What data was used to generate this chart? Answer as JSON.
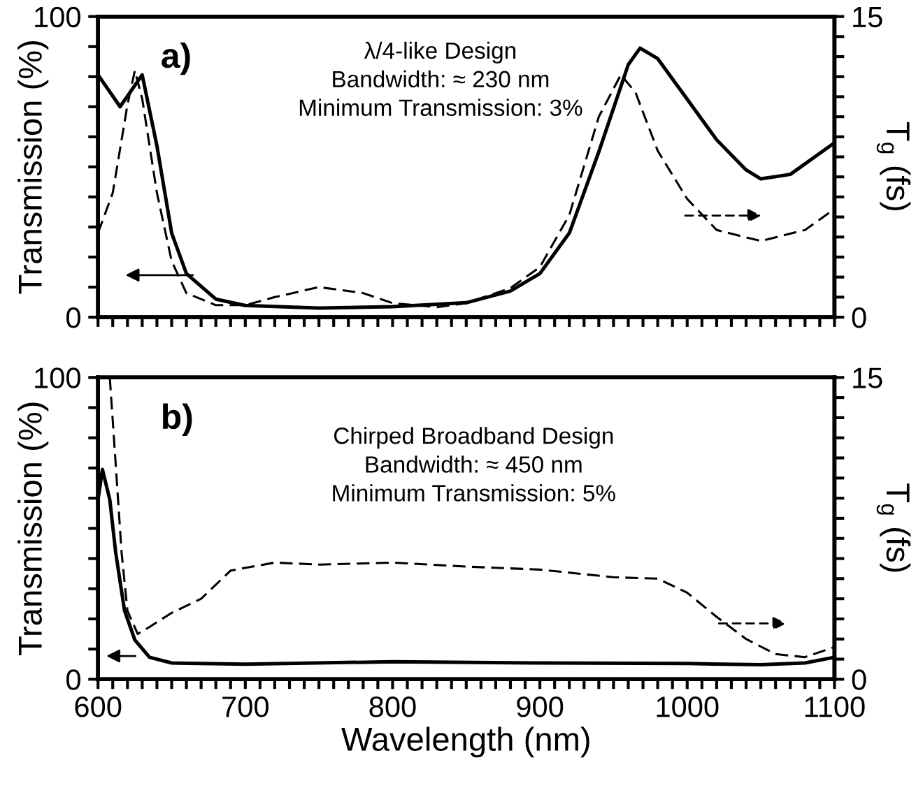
{
  "chart_data": [
    {
      "type": "line",
      "ylabel": "Transmission (%)",
      "y2label": "T$_{g}$ (fs)",
      "annotations": [
        "a)",
        "λ/4-like Design",
        "Bandwidth: ≈ 230 nm",
        "Minimum Transmission: 3%"
      ],
      "xlim": [
        600,
        1100
      ],
      "xticks": [
        600,
        {
          "value": 610,
          "label": null
        },
        {
          "value": 620,
          "label": null
        },
        {
          "value": 630,
          "label": null
        },
        {
          "value": 640,
          "label": null
        },
        {
          "value": 650,
          "label": null
        },
        {
          "value": 660,
          "label": null
        },
        {
          "value": 670,
          "label": null
        },
        {
          "value": 680,
          "label": null
        },
        {
          "value": 690,
          "label": null
        },
        700,
        {
          "value": 710,
          "label": null
        },
        {
          "value": 720,
          "label": null
        },
        {
          "value": 730,
          "label": null
        },
        {
          "value": 740,
          "label": null
        },
        {
          "value": 750,
          "label": null
        },
        {
          "value": 760,
          "label": null
        },
        {
          "value": 770,
          "label": null
        },
        {
          "value": 780,
          "label": null
        },
        {
          "value": 790,
          "label": null
        },
        800,
        {
          "value": 810,
          "label": null
        },
        {
          "value": 820,
          "label": null
        },
        {
          "value": 830,
          "label": null
        },
        {
          "value": 840,
          "label": null
        },
        {
          "value": 850,
          "label": null
        },
        {
          "value": 860,
          "label": null
        },
        {
          "value": 870,
          "label": null
        },
        {
          "value": 880,
          "label": null
        },
        {
          "value": 890,
          "label": null
        },
        900,
        {
          "value": 910,
          "label": null
        },
        {
          "value": 920,
          "label": null
        },
        {
          "value": 930,
          "label": null
        },
        {
          "value": 940,
          "label": null
        },
        {
          "value": 950,
          "label": null
        },
        {
          "value": 960,
          "label": null
        },
        {
          "value": 970,
          "label": null
        },
        {
          "value": 980,
          "label": null
        },
        {
          "value": 990,
          "label": null
        },
        1000,
        {
          "value": 1010,
          "label": null
        },
        {
          "value": 1020,
          "label": null
        },
        {
          "value": 1030,
          "label": null
        },
        {
          "value": 1040,
          "label": null
        },
        {
          "value": 1050,
          "label": null
        },
        {
          "value": 1060,
          "label": null
        },
        {
          "value": 1070,
          "label": null
        },
        {
          "value": 1080,
          "label": null
        },
        {
          "value": 1090,
          "label": null
        },
        1100
      ],
      "ylim": [
        0,
        100
      ],
      "yticks": [
        0,
        {
          "value": 10,
          "label": null
        },
        {
          "value": 20,
          "label": null
        },
        {
          "value": 30,
          "label": null
        },
        {
          "value": 40,
          "label": null
        },
        {
          "value": 50,
          "label": null
        },
        {
          "value": 60,
          "label": null
        },
        {
          "value": 70,
          "label": null
        },
        {
          "value": 80,
          "label": null
        },
        {
          "value": 90,
          "label": null
        },
        100
      ],
      "y2lim": [
        0,
        15
      ],
      "y2ticks": [
        0,
        {
          "value": 1,
          "label": null
        },
        {
          "value": 2,
          "label": null
        },
        {
          "value": 3,
          "label": null
        },
        {
          "value": 4,
          "label": null
        },
        {
          "value": 5,
          "label": null
        },
        {
          "value": 6,
          "label": null
        },
        {
          "value": 7,
          "label": null
        },
        {
          "value": 8,
          "label": null
        },
        {
          "value": 9,
          "label": null
        },
        {
          "value": 10,
          "label": null
        },
        {
          "value": 11,
          "label": null
        },
        {
          "value": 12,
          "label": null
        },
        {
          "value": 13,
          "label": null
        },
        {
          "value": 14,
          "label": null
        },
        15
      ],
      "tick_labels": "y",
      "grid": false,
      "legend": false,
      "series": [
        {
          "color": "#000000",
          "line_style": "solid",
          "x": [
            600,
            615,
            630,
            640,
            650,
            660,
            680,
            700,
            750,
            800,
            850,
            880,
            900,
            920,
            940,
            960,
            968,
            980,
            1000,
            1020,
            1040,
            1050,
            1070,
            1100
          ],
          "values": [
            80.6,
            70,
            80.6,
            57,
            28,
            14.5,
            6,
            3.9,
            3,
            3.5,
            4.8,
            8.7,
            14.5,
            28,
            55,
            84,
            89.5,
            86,
            72.5,
            59,
            49,
            46,
            47.5,
            58
          ]
        },
        {
          "color": "#000000",
          "line_style": "dashed",
          "axis": "y2",
          "x": [
            600,
            610,
            620,
            625,
            630,
            640,
            650,
            660,
            680,
            700,
            720,
            750,
            780,
            800,
            830,
            850,
            880,
            900,
            920,
            940,
            955,
            965,
            980,
            1000,
            1020,
            1050,
            1080,
            1100
          ],
          "values": [
            4.2,
            6.2,
            10.6,
            12.3,
            10.9,
            6.2,
            2.8,
            1.2,
            0.6,
            0.6,
            1.0,
            1.5,
            1.2,
            0.7,
            0.5,
            0.7,
            1.45,
            2.5,
            5.1,
            10,
            12.1,
            11.2,
            8.3,
            5.9,
            4.35,
            3.8,
            4.35,
            5.4
          ]
        }
      ]
    },
    {
      "type": "line",
      "xlabel": "Wavelength (nm)",
      "ylabel": "Transmission (%)",
      "y2label": "T$_{g}$ (fs)",
      "annotations": [
        "b)",
        "Chirped Broadband Design",
        "Bandwidth: ≈ 450 nm",
        "Minimum Transmission: 5%"
      ],
      "xlim": [
        600,
        1100
      ],
      "xticks": [
        600,
        {
          "value": 610,
          "label": null
        },
        {
          "value": 620,
          "label": null
        },
        {
          "value": 630,
          "label": null
        },
        {
          "value": 640,
          "label": null
        },
        {
          "value": 650,
          "label": null
        },
        {
          "value": 660,
          "label": null
        },
        {
          "value": 670,
          "label": null
        },
        {
          "value": 680,
          "label": null
        },
        {
          "value": 690,
          "label": null
        },
        700,
        {
          "value": 710,
          "label": null
        },
        {
          "value": 720,
          "label": null
        },
        {
          "value": 730,
          "label": null
        },
        {
          "value": 740,
          "label": null
        },
        {
          "value": 750,
          "label": null
        },
        {
          "value": 760,
          "label": null
        },
        {
          "value": 770,
          "label": null
        },
        {
          "value": 780,
          "label": null
        },
        {
          "value": 790,
          "label": null
        },
        800,
        {
          "value": 810,
          "label": null
        },
        {
          "value": 820,
          "label": null
        },
        {
          "value": 830,
          "label": null
        },
        {
          "value": 840,
          "label": null
        },
        {
          "value": 850,
          "label": null
        },
        {
          "value": 860,
          "label": null
        },
        {
          "value": 870,
          "label": null
        },
        {
          "value": 880,
          "label": null
        },
        {
          "value": 890,
          "label": null
        },
        900,
        {
          "value": 910,
          "label": null
        },
        {
          "value": 920,
          "label": null
        },
        {
          "value": 930,
          "label": null
        },
        {
          "value": 940,
          "label": null
        },
        {
          "value": 950,
          "label": null
        },
        {
          "value": 960,
          "label": null
        },
        {
          "value": 970,
          "label": null
        },
        {
          "value": 980,
          "label": null
        },
        {
          "value": 990,
          "label": null
        },
        1000,
        {
          "value": 1010,
          "label": null
        },
        {
          "value": 1020,
          "label": null
        },
        {
          "value": 1030,
          "label": null
        },
        {
          "value": 1040,
          "label": null
        },
        {
          "value": 1050,
          "label": null
        },
        {
          "value": 1060,
          "label": null
        },
        {
          "value": 1070,
          "label": null
        },
        {
          "value": 1080,
          "label": null
        },
        {
          "value": 1090,
          "label": null
        },
        1100
      ],
      "ylim": [
        0,
        100
      ],
      "yticks": [
        0,
        {
          "value": 10,
          "label": null
        },
        {
          "value": 20,
          "label": null
        },
        {
          "value": 30,
          "label": null
        },
        {
          "value": 40,
          "label": null
        },
        {
          "value": 50,
          "label": null
        },
        {
          "value": 60,
          "label": null
        },
        {
          "value": 70,
          "label": null
        },
        {
          "value": 80,
          "label": null
        },
        {
          "value": 90,
          "label": null
        },
        100
      ],
      "y2lim": [
        0,
        15
      ],
      "y2ticks": [
        0,
        {
          "value": 1,
          "label": null
        },
        {
          "value": 2,
          "label": null
        },
        {
          "value": 3,
          "label": null
        },
        {
          "value": 4,
          "label": null
        },
        {
          "value": 5,
          "label": null
        },
        {
          "value": 6,
          "label": null
        },
        {
          "value": 7,
          "label": null
        },
        {
          "value": 8,
          "label": null
        },
        {
          "value": 9,
          "label": null
        },
        {
          "value": 10,
          "label": null
        },
        {
          "value": 11,
          "label": null
        },
        {
          "value": 12,
          "label": null
        },
        {
          "value": 13,
          "label": null
        },
        {
          "value": 14,
          "label": null
        },
        15
      ],
      "grid": false,
      "legend": false,
      "series": [
        {
          "color": "#000000",
          "line_style": "solid",
          "x": [
            600,
            603,
            608,
            612,
            618,
            625,
            635,
            650,
            700,
            800,
            900,
            1000,
            1050,
            1080,
            1100
          ],
          "values": [
            59.5,
            69.5,
            59.5,
            42,
            22.8,
            13,
            7.3,
            5.4,
            5,
            5.8,
            5.4,
            5.2,
            4.8,
            5.4,
            7.3
          ]
        },
        {
          "color": "#000000",
          "line_style": "dashed",
          "axis": "y2",
          "x": [
            608,
            612,
            616,
            620,
            627,
            635,
            650,
            670,
            690,
            720,
            750,
            800,
            850,
            900,
            950,
            980,
            1000,
            1020,
            1040,
            1060,
            1080,
            1100
          ],
          "values": [
            15,
            10.7,
            6.3,
            3.4,
            2.25,
            2.6,
            3.3,
            4.0,
            5.4,
            5.8,
            5.7,
            5.8,
            5.6,
            5.45,
            5.07,
            5.0,
            4.3,
            3.1,
            2.0,
            1.25,
            1.1,
            1.6
          ]
        }
      ]
    }
  ]
}
